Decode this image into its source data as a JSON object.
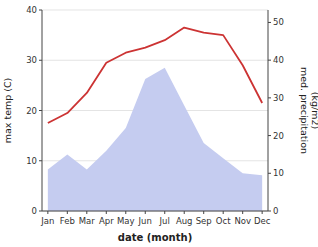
{
  "chart_data": {
    "type": "line",
    "x_label": "date (month)",
    "y_label": "max temp (C)",
    "y2_label": "med. precipitation\n(kg/m2)",
    "categories": [
      "Jan",
      "Feb",
      "Mar",
      "Apr",
      "May",
      "Jun",
      "Jul",
      "Aug",
      "Sep",
      "Oct",
      "Nov",
      "Dec"
    ],
    "series": [
      {
        "type": "area",
        "axis": "y2",
        "color": "#c5ccf0",
        "values": [
          11,
          15,
          11,
          16,
          22,
          35,
          38,
          28,
          18,
          14,
          10,
          9.5
        ]
      },
      {
        "type": "line",
        "color": "#cc3333",
        "values": [
          17.5,
          19.5,
          23.5,
          29.5,
          31.5,
          32.5,
          34.0,
          36.5,
          35.5,
          35.0,
          29.0,
          21.5
        ]
      }
    ],
    "ylim": [
      0,
      40
    ],
    "yticks": [
      0,
      10,
      20,
      30,
      40
    ],
    "y2lim": [
      0,
      53.3
    ],
    "y2ticks": [
      0,
      10,
      20,
      30,
      40,
      50
    ],
    "grid": true
  }
}
